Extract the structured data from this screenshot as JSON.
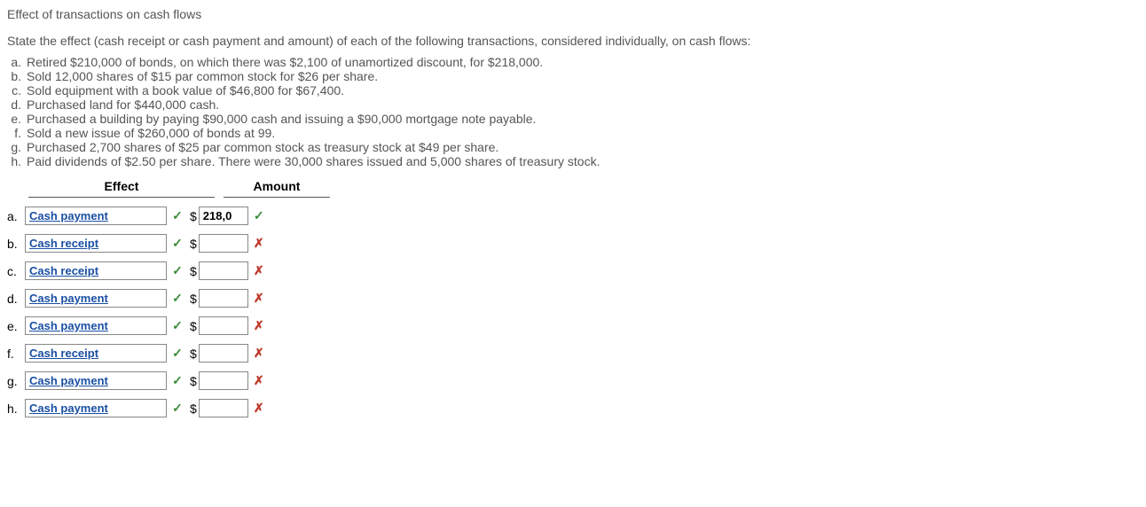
{
  "title": "Effect of transactions on cash flows",
  "instructions": "State the effect (cash receipt or cash payment and amount) of each of the following transactions, considered individually, on cash flows:",
  "transactions": [
    {
      "letter": "a.",
      "text": "Retired $210,000 of bonds, on which there was $2,100 of unamortized discount, for $218,000."
    },
    {
      "letter": "b.",
      "text": "Sold 12,000 shares of $15 par common stock for $26 per share."
    },
    {
      "letter": "c.",
      "text": "Sold equipment with a book value of $46,800 for $67,400."
    },
    {
      "letter": "d.",
      "text": "Purchased land for $440,000 cash."
    },
    {
      "letter": "e.",
      "text": "Purchased a building by paying $90,000 cash and issuing a $90,000 mortgage note payable."
    },
    {
      "letter": "f.",
      "text": "Sold a new issue of $260,000 of bonds at 99."
    },
    {
      "letter": "g.",
      "text": "Purchased 2,700 shares of $25 par common stock as treasury stock at $49 per share."
    },
    {
      "letter": "h.",
      "text": "Paid dividends of $2.50 per share. There were 30,000 shares issued and 5,000 shares of treasury stock."
    }
  ],
  "headers": {
    "effect": "Effect",
    "amount": "Amount"
  },
  "answers": [
    {
      "letter": "a.",
      "effect": "Cash payment",
      "effect_mark": "check",
      "amount": "218,0",
      "amount_mark": "check"
    },
    {
      "letter": "b.",
      "effect": "Cash receipt",
      "effect_mark": "check",
      "amount": "",
      "amount_mark": "cross"
    },
    {
      "letter": "c.",
      "effect": "Cash receipt",
      "effect_mark": "check",
      "amount": "",
      "amount_mark": "cross"
    },
    {
      "letter": "d.",
      "effect": "Cash payment",
      "effect_mark": "check",
      "amount": "",
      "amount_mark": "cross"
    },
    {
      "letter": "e.",
      "effect": "Cash payment",
      "effect_mark": "check",
      "amount": "",
      "amount_mark": "cross"
    },
    {
      "letter": "f.",
      "effect": "Cash receipt",
      "effect_mark": "check",
      "amount": "",
      "amount_mark": "cross"
    },
    {
      "letter": "g.",
      "effect": "Cash payment",
      "effect_mark": "check",
      "amount": "",
      "amount_mark": "cross"
    },
    {
      "letter": "h.",
      "effect": "Cash payment",
      "effect_mark": "check",
      "amount": "",
      "amount_mark": "cross"
    }
  ],
  "marks": {
    "check": "✓",
    "cross": "✗"
  }
}
